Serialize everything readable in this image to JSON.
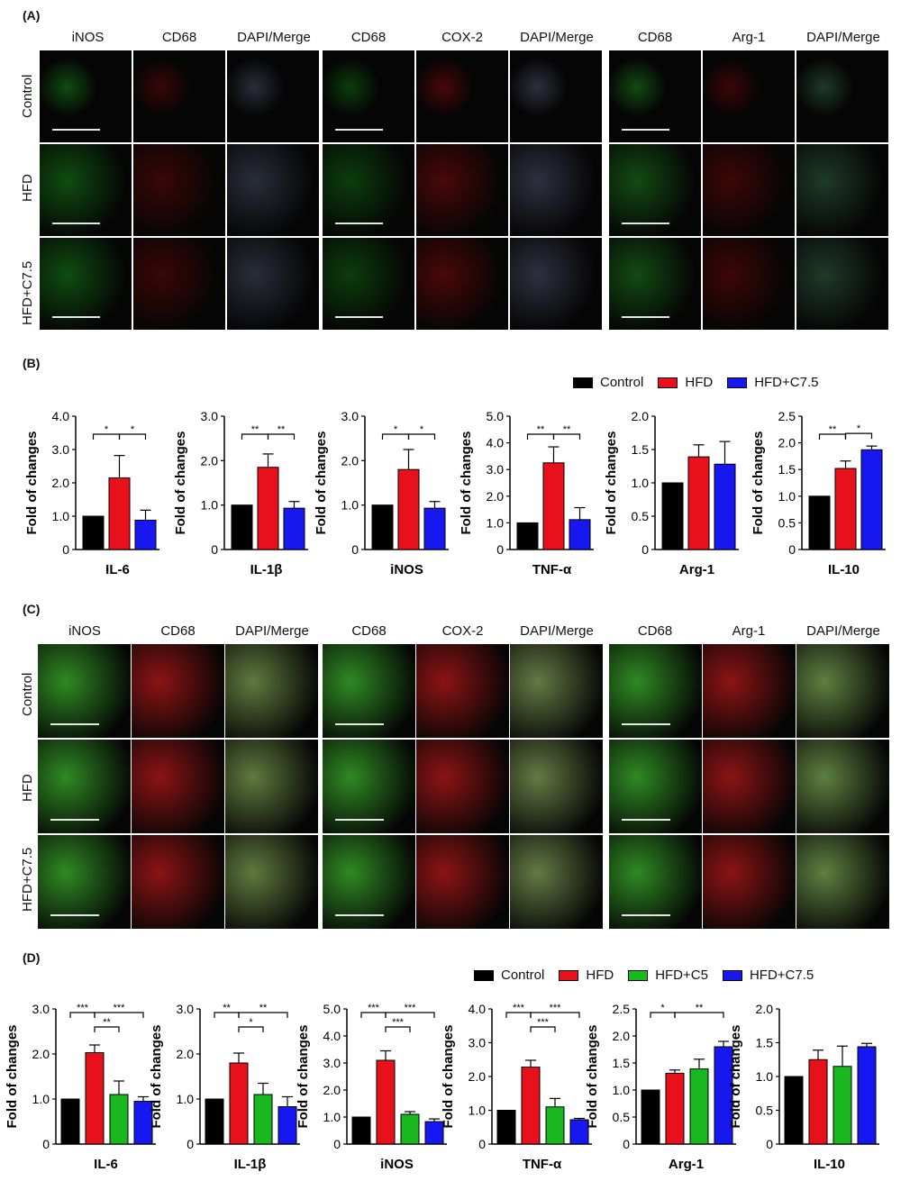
{
  "panels": {
    "A": "(A)",
    "B": "(B)",
    "C": "(C)",
    "D": "(D)"
  },
  "micrograph_headers": [
    "iNOS",
    "CD68",
    "DAPI/Merge",
    "CD68",
    "COX-2",
    "DAPI/Merge",
    "CD68",
    "Arg-1",
    "DAPI/Merge"
  ],
  "micrograph_rows": [
    "Control",
    "HFD",
    "HFD+C7.5"
  ],
  "micrograph_tints": {
    "A": [
      "#0f4d10",
      "#3a0707",
      "#2a2e3a",
      "#0c3d0c",
      "#4a0808",
      "#2f3040",
      "#134b13",
      "#3d0606",
      "#1f3a2a"
    ],
    "C": [
      "#2f8a23",
      "#8c1414",
      "#5f7a3e",
      "#2f8a23",
      "#8c1414",
      "#647a44",
      "#2f8a23",
      "#8c1414",
      "#5e8040"
    ]
  },
  "colors": {
    "Control": "#000000",
    "HFD": "#e8101a",
    "HFD+C5": "#18b81e",
    "HFD+C7.5": "#1717f0"
  },
  "legend_B": [
    "Control",
    "HFD",
    "HFD+C7.5"
  ],
  "legend_D": [
    "Control",
    "HFD",
    "HFD+C5",
    "HFD+C7.5"
  ],
  "chart_data": [
    {
      "type": "bar",
      "panel": "B",
      "xlabel": "IL-6",
      "ylabel": "Fold of changes",
      "ylim": [
        0,
        4.0
      ],
      "ticks": [
        "0",
        "1.0",
        "2.0",
        "3.0",
        "4.0"
      ],
      "tick_values": [
        0,
        1,
        2,
        3,
        4
      ],
      "groups": [
        "Control",
        "HFD",
        "HFD+C7.5"
      ],
      "values": [
        1.0,
        2.15,
        0.88
      ],
      "errors": [
        0,
        0.67,
        0.3
      ],
      "sig": [
        {
          "from": 0,
          "to": 1,
          "label": "*"
        },
        {
          "from": 1,
          "to": 2,
          "label": "*"
        }
      ]
    },
    {
      "type": "bar",
      "panel": "B",
      "xlabel": "IL-1β",
      "ylabel": "Fold of changes",
      "ylim": [
        0,
        3.0
      ],
      "ticks": [
        "0",
        "1.0",
        "2.0",
        "3.0"
      ],
      "tick_values": [
        0,
        1,
        2,
        3
      ],
      "groups": [
        "Control",
        "HFD",
        "HFD+C7.5"
      ],
      "values": [
        1.0,
        1.85,
        0.93
      ],
      "errors": [
        0,
        0.3,
        0.15
      ],
      "sig": [
        {
          "from": 0,
          "to": 1,
          "label": "**"
        },
        {
          "from": 1,
          "to": 2,
          "label": "**"
        }
      ]
    },
    {
      "type": "bar",
      "panel": "B",
      "xlabel": "iNOS",
      "ylabel": "Fold of changes",
      "ylim": [
        0,
        3.0
      ],
      "ticks": [
        "0",
        "1.0",
        "2.0",
        "3.0"
      ],
      "tick_values": [
        0,
        1,
        2,
        3
      ],
      "groups": [
        "Control",
        "HFD",
        "HFD+C7.5"
      ],
      "values": [
        1.0,
        1.8,
        0.93
      ],
      "errors": [
        0,
        0.45,
        0.15
      ],
      "sig": [
        {
          "from": 0,
          "to": 1,
          "label": "*"
        },
        {
          "from": 1,
          "to": 2,
          "label": "*"
        }
      ]
    },
    {
      "type": "bar",
      "panel": "B",
      "xlabel": "TNF-α",
      "ylabel": "Fold of changes",
      "ylim": [
        0,
        5.0
      ],
      "ticks": [
        "0",
        "1.0",
        "2.0",
        "3.0",
        "4.0",
        "5.0"
      ],
      "tick_values": [
        0,
        1,
        2,
        3,
        4,
        5
      ],
      "groups": [
        "Control",
        "HFD",
        "HFD+C7.5"
      ],
      "values": [
        1.0,
        3.25,
        1.12
      ],
      "errors": [
        0,
        0.6,
        0.45
      ],
      "sig": [
        {
          "from": 0,
          "to": 1,
          "label": "**"
        },
        {
          "from": 1,
          "to": 2,
          "label": "**"
        }
      ]
    },
    {
      "type": "bar",
      "panel": "B",
      "xlabel": "Arg-1",
      "ylabel": "Fold of changes",
      "ylim": [
        0,
        2.0
      ],
      "ticks": [
        "0",
        "0.5",
        "1.0",
        "1.5",
        "2.0"
      ],
      "tick_values": [
        0,
        0.5,
        1,
        1.5,
        2
      ],
      "groups": [
        "Control",
        "HFD",
        "HFD+C7.5"
      ],
      "values": [
        1.0,
        1.39,
        1.28
      ],
      "errors": [
        0,
        0.18,
        0.34
      ],
      "sig": []
    },
    {
      "type": "bar",
      "panel": "B",
      "xlabel": "IL-10",
      "ylabel": "Fold of changes",
      "ylim": [
        0,
        2.5
      ],
      "ticks": [
        "0",
        "0.5",
        "1.0",
        "1.5",
        "2.0",
        "2.5"
      ],
      "tick_values": [
        0,
        0.5,
        1,
        1.5,
        2,
        2.5
      ],
      "groups": [
        "Control",
        "HFD",
        "HFD+C7.5"
      ],
      "values": [
        1.0,
        1.52,
        1.87
      ],
      "errors": [
        0,
        0.14,
        0.07
      ],
      "sig": [
        {
          "from": 0,
          "to": 1,
          "label": "**"
        },
        {
          "from": 1,
          "to": 2,
          "label": "*"
        }
      ]
    },
    {
      "type": "bar",
      "panel": "D",
      "xlabel": "IL-6",
      "ylabel": "Fold of changes",
      "ylim": [
        0,
        3.0
      ],
      "ticks": [
        "0",
        "1.0",
        "2.0",
        "3.0"
      ],
      "tick_values": [
        0,
        1,
        2,
        3
      ],
      "groups": [
        "Control",
        "HFD",
        "HFD+C5",
        "HFD+C7.5"
      ],
      "values": [
        1.0,
        2.03,
        1.1,
        0.95
      ],
      "errors": [
        0,
        0.17,
        0.3,
        0.1
      ],
      "sig": [
        {
          "from": 0,
          "to": 1,
          "label": "***"
        },
        {
          "from": 1,
          "to": 2,
          "label": "**"
        },
        {
          "from": 1,
          "to": 3,
          "label": "***"
        }
      ]
    },
    {
      "type": "bar",
      "panel": "D",
      "xlabel": "IL-1β",
      "ylabel": "Fold of changes",
      "ylim": [
        0,
        3.0
      ],
      "ticks": [
        "0",
        "1.0",
        "2.0",
        "3.0"
      ],
      "tick_values": [
        0,
        1,
        2,
        3
      ],
      "groups": [
        "Control",
        "HFD",
        "HFD+C5",
        "HFD+C7.5"
      ],
      "values": [
        1.0,
        1.8,
        1.1,
        0.83
      ],
      "errors": [
        0,
        0.22,
        0.25,
        0.22
      ],
      "sig": [
        {
          "from": 0,
          "to": 1,
          "label": "**"
        },
        {
          "from": 1,
          "to": 2,
          "label": "*"
        },
        {
          "from": 1,
          "to": 3,
          "label": "**"
        }
      ]
    },
    {
      "type": "bar",
      "panel": "D",
      "xlabel": "iNOS",
      "ylabel": "Fold of changes",
      "ylim": [
        0,
        5.0
      ],
      "ticks": [
        "0",
        "1.0",
        "2.0",
        "3.0",
        "4.0",
        "5.0"
      ],
      "tick_values": [
        0,
        1,
        2,
        3,
        4,
        5
      ],
      "groups": [
        "Control",
        "HFD",
        "HFD+C5",
        "HFD+C7.5"
      ],
      "values": [
        1.0,
        3.1,
        1.1,
        0.83
      ],
      "errors": [
        0,
        0.35,
        0.1,
        0.1
      ],
      "sig": [
        {
          "from": 0,
          "to": 1,
          "label": "***"
        },
        {
          "from": 1,
          "to": 2,
          "label": "***"
        },
        {
          "from": 1,
          "to": 3,
          "label": "***"
        }
      ]
    },
    {
      "type": "bar",
      "panel": "D",
      "xlabel": "TNF-α",
      "ylabel": "Fold of changes",
      "ylim": [
        0,
        4.0
      ],
      "ticks": [
        "0",
        "1.0",
        "2.0",
        "3.0",
        "4.0"
      ],
      "tick_values": [
        0,
        1,
        2,
        3,
        4
      ],
      "groups": [
        "Control",
        "HFD",
        "HFD+C5",
        "HFD+C7.5"
      ],
      "values": [
        1.0,
        2.28,
        1.1,
        0.72
      ],
      "errors": [
        0,
        0.2,
        0.25,
        0.04
      ],
      "sig": [
        {
          "from": 0,
          "to": 1,
          "label": "***"
        },
        {
          "from": 1,
          "to": 2,
          "label": "***"
        },
        {
          "from": 1,
          "to": 3,
          "label": "***"
        }
      ]
    },
    {
      "type": "bar",
      "panel": "D",
      "xlabel": "Arg-1",
      "ylabel": "Fold of changes",
      "ylim": [
        0,
        2.5
      ],
      "ticks": [
        "0",
        "0.5",
        "1.0",
        "1.5",
        "2.0",
        "2.5"
      ],
      "tick_values": [
        0,
        0.5,
        1,
        1.5,
        2,
        2.5
      ],
      "groups": [
        "Control",
        "HFD",
        "HFD+C5",
        "HFD+C7.5"
      ],
      "values": [
        1.0,
        1.31,
        1.39,
        1.8
      ],
      "errors": [
        0,
        0.06,
        0.18,
        0.1
      ],
      "sig": [
        {
          "from": 0,
          "to": 1,
          "label": "*"
        },
        {
          "from": 1,
          "to": 3,
          "label": "**"
        }
      ]
    },
    {
      "type": "bar",
      "panel": "D",
      "xlabel": "IL-10",
      "ylabel": "Fold of changes",
      "ylim": [
        0,
        2.0
      ],
      "ticks": [
        "0",
        "0.5",
        "1.0",
        "1.5",
        "2.0"
      ],
      "tick_values": [
        0,
        0.5,
        1,
        1.5,
        2
      ],
      "groups": [
        "Control",
        "HFD",
        "HFD+C5",
        "HFD+C7.5"
      ],
      "values": [
        1.0,
        1.25,
        1.15,
        1.44
      ],
      "errors": [
        0,
        0.14,
        0.3,
        0.05
      ],
      "sig": []
    }
  ]
}
